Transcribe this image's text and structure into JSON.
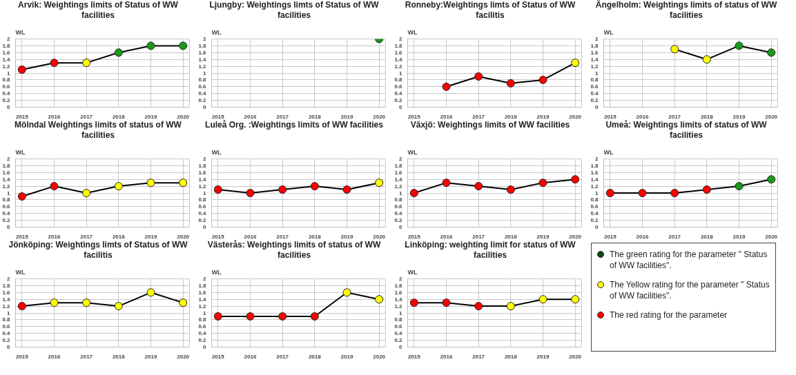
{
  "chart_data": [
    {
      "type": "line",
      "title": "Arvik: Weightings limits of Status of WW facilities",
      "ylabel": "WL",
      "categories": [
        "2015",
        "2016",
        "2017",
        "2018",
        "2019",
        "2020"
      ],
      "values": [
        1.1,
        1.3,
        1.3,
        1.6,
        1.8,
        1.8
      ],
      "color": "#000000",
      "colors": [
        "#ff0000",
        "#ff0000",
        "#ffff00",
        "#1a9a1a",
        "#1a9a1a",
        "#1a9a1a"
      ],
      "marker": "circle",
      "ylim": [
        0,
        2
      ],
      "yticks": [
        0,
        0.2,
        0.4,
        0.6,
        0.8,
        1,
        1.2,
        1.4,
        1.6,
        1.8,
        2
      ],
      "grid": true
    },
    {
      "type": "line",
      "title": "Ljungby: Weightings limts of Status of WW facilities",
      "ylabel": "WL",
      "categories": [
        "2015",
        "2016",
        "2017",
        "2018",
        "2019",
        "2020"
      ],
      "values": [
        null,
        null,
        null,
        null,
        null,
        2.0
      ],
      "color": "#000000",
      "colors": [
        null,
        null,
        null,
        null,
        null,
        "#1a9a1a"
      ],
      "marker": "circle",
      "ylim": [
        0,
        2
      ],
      "yticks": [
        0,
        0.2,
        0.4,
        0.6,
        0.8,
        1,
        1.2,
        1.4,
        1.6,
        1.8,
        2
      ],
      "grid": true
    },
    {
      "type": "line",
      "title": "Ronneby:Weightings limts of Status of WW facilitis",
      "ylabel": "WL",
      "categories": [
        "2015",
        "2016",
        "2017",
        "2018",
        "2019",
        "2020"
      ],
      "values": [
        null,
        0.6,
        0.9,
        0.7,
        0.8,
        1.3
      ],
      "color": "#000000",
      "colors": [
        null,
        "#ff0000",
        "#ff0000",
        "#ff0000",
        "#ff0000",
        "#ffff00"
      ],
      "marker": "circle",
      "ylim": [
        0,
        2
      ],
      "yticks": [
        0,
        0.2,
        0.4,
        0.6,
        0.8,
        1,
        1.2,
        1.4,
        1.6,
        1.8,
        2
      ],
      "grid": true
    },
    {
      "type": "line",
      "title": "Ängelholm: Weightings limits of status of WW facilities",
      "ylabel": "WL",
      "categories": [
        "2015",
        "2016",
        "2017",
        "2018",
        "2019",
        "2020"
      ],
      "values": [
        null,
        null,
        1.7,
        1.4,
        1.8,
        1.6
      ],
      "color": "#000000",
      "colors": [
        null,
        null,
        "#ffff00",
        "#ffff00",
        "#1a9a1a",
        "#1a9a1a"
      ],
      "marker": "circle",
      "ylim": [
        0,
        2
      ],
      "yticks": [
        0,
        0.2,
        0.4,
        0.6,
        0.8,
        1,
        1.2,
        1.4,
        1.6,
        1.8,
        2
      ],
      "grid": true
    },
    {
      "type": "line",
      "title": "Mölndal Weightings limits of status of WW facilities",
      "ylabel": "WL",
      "categories": [
        "2015",
        "2016",
        "2017",
        "2018",
        "2019",
        "2020"
      ],
      "values": [
        0.9,
        1.2,
        1.0,
        1.2,
        1.3,
        1.3
      ],
      "color": "#000000",
      "colors": [
        "#ff0000",
        "#ff0000",
        "#ffff00",
        "#ffff00",
        "#ffff00",
        "#ffff00"
      ],
      "marker": "circle",
      "ylim": [
        0,
        2
      ],
      "yticks": [
        0,
        0.2,
        0.4,
        0.6,
        0.8,
        1,
        1.2,
        1.4,
        1.6,
        1.8,
        2
      ],
      "grid": true
    },
    {
      "type": "line",
      "title": "Luleå Org. :Weightings limits of WW facilities",
      "ylabel": "WL",
      "categories": [
        "2015",
        "2016",
        "2017",
        "2018",
        "2019",
        "2020"
      ],
      "values": [
        1.1,
        1.0,
        1.1,
        1.2,
        1.1,
        1.3
      ],
      "color": "#000000",
      "colors": [
        "#ff0000",
        "#ff0000",
        "#ff0000",
        "#ff0000",
        "#ff0000",
        "#ffff00"
      ],
      "marker": "circle",
      "ylim": [
        0,
        2
      ],
      "yticks": [
        0,
        0.2,
        0.4,
        0.6,
        0.8,
        1,
        1.2,
        1.4,
        1.6,
        1.8,
        2
      ],
      "grid": true
    },
    {
      "type": "line",
      "title": "Växjö: Weightings limits of WW facilities",
      "ylabel": "WL",
      "categories": [
        "2015",
        "2016",
        "2017",
        "2018",
        "2019",
        "2020"
      ],
      "values": [
        1.0,
        1.3,
        1.2,
        1.1,
        1.3,
        1.4
      ],
      "color": "#000000",
      "colors": [
        "#ff0000",
        "#ff0000",
        "#ff0000",
        "#ff0000",
        "#ff0000",
        "#ff0000"
      ],
      "marker": "circle",
      "ylim": [
        0,
        2
      ],
      "yticks": [
        0,
        0.2,
        0.4,
        0.6,
        0.8,
        1,
        1.2,
        1.4,
        1.6,
        1.8,
        2
      ],
      "grid": true
    },
    {
      "type": "line",
      "title": "Umeå: Weightings limits of status of WW facilities",
      "ylabel": "WL",
      "categories": [
        "2015",
        "2016",
        "2017",
        "2018",
        "2019",
        "2020"
      ],
      "values": [
        1.0,
        1.0,
        1.0,
        1.1,
        1.2,
        1.4
      ],
      "color": "#000000",
      "colors": [
        "#ff0000",
        "#ff0000",
        "#ff0000",
        "#ff0000",
        "#1a9a1a",
        "#1a9a1a"
      ],
      "marker": "circle",
      "ylim": [
        0,
        2
      ],
      "yticks": [
        0,
        0.2,
        0.4,
        0.6,
        0.8,
        1,
        1.2,
        1.4,
        1.6,
        1.8,
        2
      ],
      "grid": true
    },
    {
      "type": "line",
      "title": "Jönköping: Weightings limts of Status of WW  facilitis",
      "ylabel": "WL",
      "categories": [
        "2015",
        "2016",
        "2017",
        "2018",
        "2019",
        "2020"
      ],
      "values": [
        1.2,
        1.3,
        1.3,
        1.2,
        1.6,
        1.3
      ],
      "color": "#000000",
      "colors": [
        "#ff0000",
        "#ffff00",
        "#ffff00",
        "#ffff00",
        "#ffff00",
        "#ffff00"
      ],
      "marker": "circle",
      "ylim": [
        0,
        2
      ],
      "yticks": [
        0,
        0.2,
        0.4,
        0.6,
        0.8,
        1,
        1.2,
        1.4,
        1.6,
        1.8,
        2
      ],
      "grid": true
    },
    {
      "type": "line",
      "title": "Västerås: Weightings limits of status of WW facilities",
      "ylabel": "WL",
      "categories": [
        "2015",
        "2016",
        "2017",
        "2018",
        "2019",
        "2020"
      ],
      "values": [
        0.9,
        0.9,
        0.9,
        0.9,
        1.6,
        1.4
      ],
      "color": "#000000",
      "colors": [
        "#ff0000",
        "#ff0000",
        "#ff0000",
        "#ff0000",
        "#ffff00",
        "#ffff00"
      ],
      "marker": "circle",
      "ylim": [
        0,
        2
      ],
      "yticks": [
        0,
        0.2,
        0.4,
        0.6,
        0.8,
        1,
        1.2,
        1.4,
        1.6,
        1.8,
        2
      ],
      "grid": true
    },
    {
      "type": "line",
      "title": "Linköping: weighting limit for status of WW facilities",
      "ylabel": "WL",
      "categories": [
        "2015",
        "2016",
        "2017",
        "2018",
        "2019",
        "2020"
      ],
      "values": [
        1.3,
        1.3,
        1.2,
        1.2,
        1.4,
        1.4
      ],
      "color": "#000000",
      "colors": [
        "#ff0000",
        "#ff0000",
        "#ff0000",
        "#ffff00",
        "#ffff00",
        "#ffff00"
      ],
      "marker": "circle",
      "ylim": [
        0,
        2
      ],
      "yticks": [
        0,
        0.2,
        0.4,
        0.6,
        0.8,
        1,
        1.2,
        1.4,
        1.6,
        1.8,
        2
      ],
      "grid": true
    },
    {
      "type": "other",
      "annotations": [
        "The green rating for the parameter \" Status of WW facilities\".",
        "The Yellow rating for the parameter \" Status of WW facilities\".",
        "The red rating for the parameter"
      ],
      "colors": [
        "#0b4d1e",
        "#ffff00",
        "#ff0000"
      ]
    }
  ]
}
